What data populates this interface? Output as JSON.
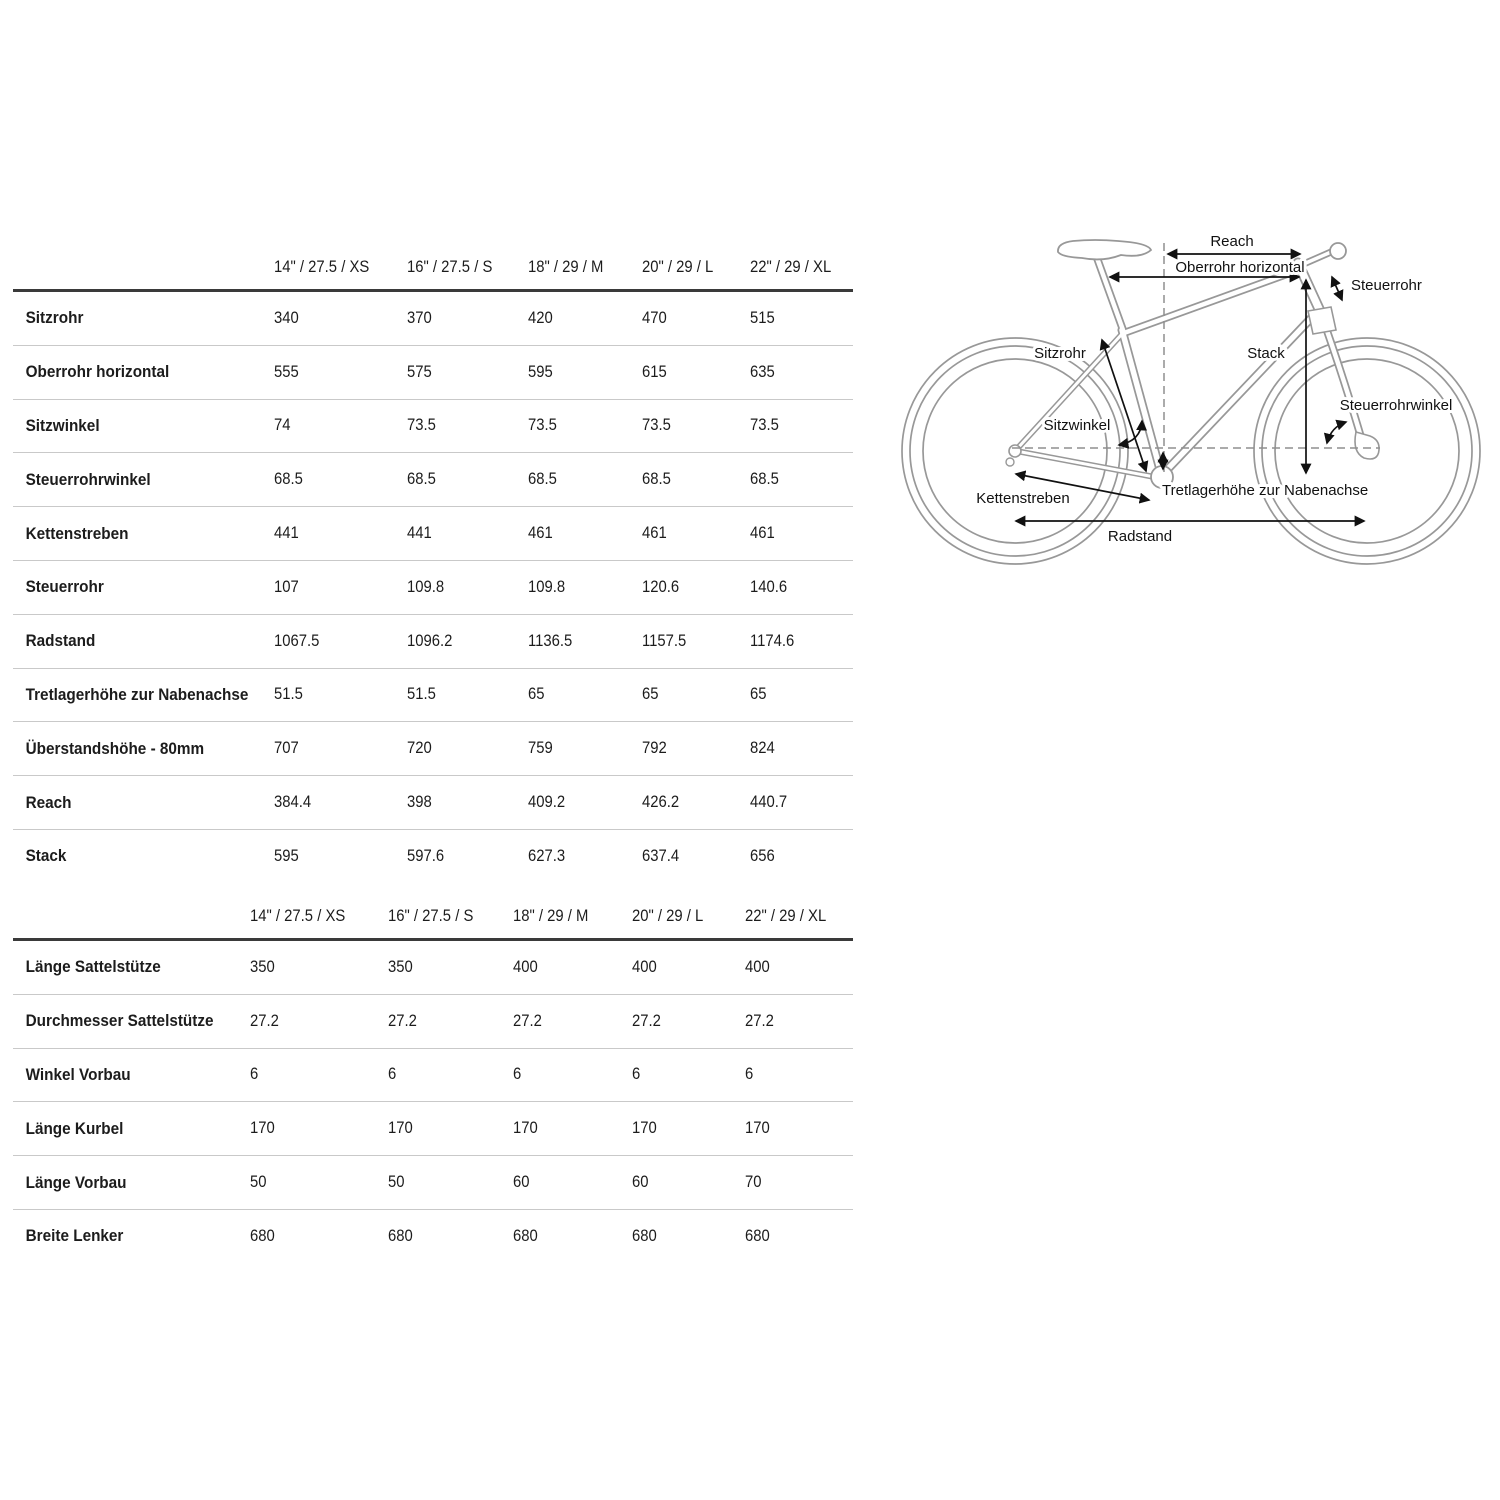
{
  "page": {
    "background": "#ffffff",
    "text_color": "#1c1c1c"
  },
  "colors": {
    "rule_dark": "#3a3a3a",
    "rule_light": "#c9c9c9",
    "diagram_outline": "#989898",
    "arrow": "#111111"
  },
  "tables": [
    {
      "columns": [
        "14\" / 27.5 / XS",
        "16\" / 27.5 / S",
        "18\" / 29 / M",
        "20\" / 29 / L",
        "22\" / 29 / XL"
      ],
      "rows": [
        {
          "label": "Sitzrohr",
          "values": [
            "340",
            "370",
            "420",
            "470",
            "515"
          ]
        },
        {
          "label": "Oberrohr horizontal",
          "values": [
            "555",
            "575",
            "595",
            "615",
            "635"
          ]
        },
        {
          "label": "Sitzwinkel",
          "values": [
            "74",
            "73.5",
            "73.5",
            "73.5",
            "73.5"
          ]
        },
        {
          "label": "Steuerrohrwinkel",
          "values": [
            "68.5",
            "68.5",
            "68.5",
            "68.5",
            "68.5"
          ]
        },
        {
          "label": "Kettenstreben",
          "values": [
            "441",
            "441",
            "461",
            "461",
            "461"
          ]
        },
        {
          "label": "Steuerrohr",
          "values": [
            "107",
            "109.8",
            "109.8",
            "120.6",
            "140.6"
          ]
        },
        {
          "label": "Radstand",
          "values": [
            "1067.5",
            "1096.2",
            "1136.5",
            "1157.5",
            "1174.6"
          ]
        },
        {
          "label": "Tretlagerhöhe zur Nabenachse",
          "values": [
            "51.5",
            "51.5",
            "65",
            "65",
            "65"
          ]
        },
        {
          "label": "Überstandshöhe - 80mm",
          "values": [
            "707",
            "720",
            "759",
            "792",
            "824"
          ]
        },
        {
          "label": "Reach",
          "values": [
            "384.4",
            "398",
            "409.2",
            "426.2",
            "440.7"
          ]
        },
        {
          "label": "Stack",
          "values": [
            "595",
            "597.6",
            "627.3",
            "637.4",
            "656"
          ]
        }
      ]
    },
    {
      "columns": [
        "14\" / 27.5 / XS",
        "16\" / 27.5 / S",
        "18\" / 29 / M",
        "20\" / 29 / L",
        "22\" / 29 / XL"
      ],
      "rows": [
        {
          "label": "Länge Sattelstütze",
          "values": [
            "350",
            "350",
            "400",
            "400",
            "400"
          ]
        },
        {
          "label": "Durchmesser Sattelstütze",
          "values": [
            "27.2",
            "27.2",
            "27.2",
            "27.2",
            "27.2"
          ]
        },
        {
          "label": "Winkel Vorbau",
          "values": [
            "6",
            "6",
            "6",
            "6",
            "6"
          ]
        },
        {
          "label": "Länge Kurbel",
          "values": [
            "170",
            "170",
            "170",
            "170",
            "170"
          ]
        },
        {
          "label": "Länge Vorbau",
          "values": [
            "50",
            "50",
            "60",
            "60",
            "70"
          ]
        },
        {
          "label": "Breite Lenker",
          "values": [
            "680",
            "680",
            "680",
            "680",
            "680"
          ]
        }
      ]
    }
  ],
  "diagram": {
    "labels": {
      "reach": "Reach",
      "oberrohr": "Oberrohr horizontal",
      "steuerrohr": "Steuerrohr",
      "sitzrohr": "Sitzrohr",
      "stack": "Stack",
      "sitzwinkel": "Sitzwinkel",
      "steuerrohrwinkel": "Steuerrohrwinkel",
      "tretlager": "Tretlagerhöhe zur Nabenachse",
      "kettenstreben": "Kettenstreben",
      "radstand": "Radstand"
    }
  }
}
